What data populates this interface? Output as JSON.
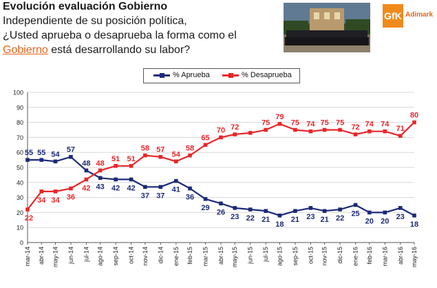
{
  "header": {
    "title": "Evolución evaluación Gobierno",
    "question_line1": "Independiente de su posición política,",
    "question_line2": "¿Usted aprueba o desaprueba la forma como el",
    "question_link": "Gobierno",
    "question_line3_rest": " está desarrollando su labor?"
  },
  "logo": {
    "brand": "GfK",
    "name": "Adimark"
  },
  "colors": {
    "aprueba": "#1c2a78",
    "desaprueba": "#e8262a",
    "grid": "#d7d7d7",
    "axis": "#555555",
    "link": "#e4631b"
  },
  "chart_data": {
    "type": "line",
    "title": "",
    "xlabel": "",
    "ylabel": "",
    "ylim": [
      0,
      100
    ],
    "yticks": [
      0,
      10,
      20,
      30,
      40,
      50,
      60,
      70,
      80,
      90,
      100
    ],
    "grid": true,
    "legend_position": "top-center",
    "categories": [
      "mar-14",
      "abr-14",
      "may-14",
      "jun-14",
      "jul-14",
      "ago-14",
      "sep-14",
      "oct-14",
      "nov-14",
      "dic-14",
      "ene-15",
      "feb-15",
      "mar-15",
      "abr-15",
      "may-15",
      "jun-15",
      "jul-15",
      "ago-15",
      "sep-15",
      "oct-15",
      "nov-15",
      "dic-15",
      "ene-16",
      "feb-16",
      "mar-16",
      "abr-16",
      "may-16"
    ],
    "x_index": [
      0,
      0.9,
      1.8,
      2.8,
      3.8,
      4.7,
      5.7,
      6.7,
      7.6,
      8.6,
      9.6,
      10.5,
      11.5,
      12.5,
      13.4,
      14.4,
      15.4,
      16.3,
      17.3,
      18.3,
      19.2,
      20.2,
      21.2,
      22.1,
      23.1,
      24.1,
      25
    ],
    "series": [
      {
        "name": "% Aprueba",
        "color": "#1c2a78",
        "marker": "square",
        "values": [
          55,
          55,
          54,
          57,
          48,
          43,
          42,
          42,
          37,
          37,
          41,
          36,
          29,
          26,
          23,
          22,
          21,
          18,
          21,
          23,
          21,
          22,
          25,
          20,
          20,
          23,
          18
        ],
        "labels": [
          "55",
          "55",
          "54",
          "57",
          "48",
          "43",
          "42",
          "42",
          "37",
          "37",
          "41",
          "36",
          "29",
          "26",
          "23",
          "22",
          "21",
          "18",
          "21",
          "23",
          "21",
          "22",
          "25",
          "20",
          "20",
          "23",
          "18"
        ]
      },
      {
        "name": "% Desaprueba",
        "color": "#e8262a",
        "marker": "square",
        "values": [
          22,
          34,
          34,
          36,
          42,
          48,
          51,
          51,
          58,
          57,
          54,
          58,
          65,
          70,
          72,
          73,
          75,
          79,
          75,
          74,
          75,
          75,
          72,
          74,
          74,
          71,
          80
        ],
        "labels": [
          "22",
          "34",
          "34",
          "36",
          "42",
          "48",
          "51",
          "51",
          "58",
          "57",
          "54",
          "58",
          "65",
          "70",
          "72",
          "",
          "75",
          "79",
          "75",
          "74",
          "75",
          "75",
          "72",
          "74",
          "74",
          "71",
          "80"
        ]
      }
    ]
  }
}
